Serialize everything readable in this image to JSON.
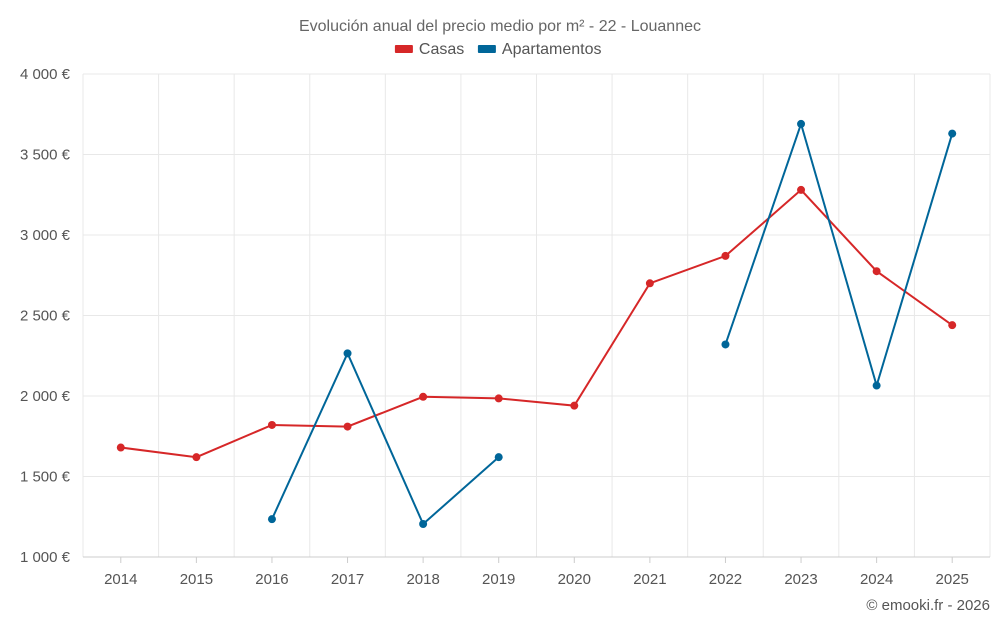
{
  "chart_data": {
    "type": "line",
    "title": "Evolución anual del precio medio por m² - 22 - Louannec",
    "xlabel": "",
    "ylabel": "",
    "categories": [
      "2014",
      "2015",
      "2016",
      "2017",
      "2018",
      "2019",
      "2020",
      "2021",
      "2022",
      "2023",
      "2024",
      "2025"
    ],
    "ylim": [
      1000,
      4000
    ],
    "yticks": [
      1000,
      1500,
      2000,
      2500,
      3000,
      3500,
      4000
    ],
    "ytick_labels": [
      "1 000 €",
      "1 500 €",
      "2 000 €",
      "2 500 €",
      "3 000 €",
      "3 500 €",
      "4 000 €"
    ],
    "grid": true,
    "legend_position": "top-center",
    "series": [
      {
        "name": "Casas",
        "color": "#d62728",
        "values": [
          1680,
          1620,
          1820,
          1810,
          1995,
          1985,
          1940,
          2700,
          2870,
          3280,
          2775,
          2440
        ]
      },
      {
        "name": "Apartamentos",
        "color": "#006699",
        "values": [
          null,
          null,
          1235,
          2265,
          1205,
          1620,
          null,
          null,
          2320,
          3690,
          2065,
          3630
        ]
      }
    ],
    "credit": "© emooki.fr - 2026"
  }
}
